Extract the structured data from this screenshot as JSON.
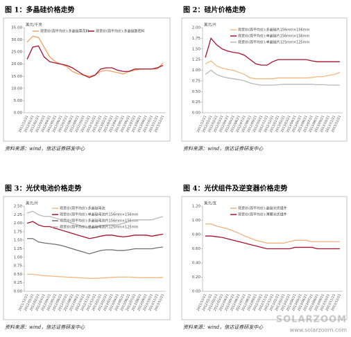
{
  "chart_data": [
    {
      "type": "line",
      "title": "图 1：多晶硅价格走势",
      "unit": "美元/千克",
      "source": "资料来源：wind，信达证券研发中心",
      "categories": [
        "2011/12/21",
        "2012/01/21",
        "2012/02/21",
        "2012/03/21",
        "2012/04/21",
        "2012/05/21",
        "2012/06/21",
        "2012/07/21",
        "2012/08/21",
        "2012/09/21",
        "2012/10/21",
        "2012/11/21",
        "2012/12/21",
        "2013/01/21",
        "2013/02/21",
        "2013/03/21",
        "2013/04/21",
        "2013/05/21",
        "2013/06/21",
        "2013/07/21",
        "2013/08/21",
        "2013/09/21",
        "2013/10/21",
        "2013/11/21",
        "2013/12/21"
      ],
      "series": [
        {
          "name": "现货价(周平均价):多晶硅菜花料",
          "color": "#f0a060",
          "values": [
            29,
            31.5,
            31,
            27,
            23,
            21,
            20,
            19,
            17,
            16,
            15.5,
            15,
            15.5,
            17,
            17.5,
            17,
            16.5,
            16,
            17,
            17.5,
            18,
            18,
            18,
            18,
            20.5
          ]
        },
        {
          "name": "现货价(周平均价):多晶硅致密料",
          "color": "#a8102a",
          "values": [
            22,
            27,
            27.5,
            23,
            21,
            20.5,
            20,
            19.5,
            18.5,
            17,
            15.5,
            14.5,
            15.5,
            18,
            18.5,
            18.5,
            17.5,
            17,
            17,
            18,
            18,
            18,
            18,
            18.5,
            19.5
          ]
        }
      ],
      "ylim": [
        0,
        35
      ],
      "yticks": [
        {
          "value": 0,
          "label": "0.00"
        },
        {
          "value": 5,
          "label": "5.00"
        },
        {
          "value": 10,
          "label": "10.00"
        },
        {
          "value": 15,
          "label": "15.00"
        },
        {
          "value": 20,
          "label": "20.00"
        },
        {
          "value": 25,
          "label": "25.00"
        },
        {
          "value": 30,
          "label": "30.00"
        },
        {
          "value": 35,
          "label": "35.00"
        }
      ],
      "grid": false,
      "legend": "top"
    },
    {
      "type": "line",
      "title": "图 2：硅片价格走势",
      "unit": "美元/片",
      "source": "资料来源：wind，信达证券研发中心",
      "categories": [
        "2011/12/21",
        "2012/01/21",
        "2012/02/21",
        "2012/03/21",
        "2012/04/21",
        "2012/05/21",
        "2012/06/21",
        "2012/07/21",
        "2012/08/21",
        "2012/09/21",
        "2012/10/21",
        "2012/11/21",
        "2012/12/21",
        "2013/01/21",
        "2013/02/21",
        "2013/03/21",
        "2013/04/21",
        "2013/05/21",
        "2013/06/21",
        "2013/07/21",
        "2013/08/21",
        "2013/09/21",
        "2013/10/21",
        "2013/11/21",
        "2013/12/21"
      ],
      "series": [
        {
          "name": "现货价(周平均价):多晶硅片156mm×156mm",
          "color": "#f5b77f",
          "values": [
            1.15,
            1.22,
            1.1,
            1.05,
            1.02,
            1.0,
            0.95,
            0.9,
            0.82,
            0.8,
            0.8,
            0.8,
            0.8,
            0.82,
            0.82,
            0.82,
            0.82,
            0.82,
            0.82,
            0.83,
            0.85,
            0.85,
            0.88,
            0.9,
            0.95
          ]
        },
        {
          "name": "现货价(周平均价):单晶硅片156mm×156mm",
          "color": "#a8102a",
          "values": [
            1.3,
            1.75,
            1.6,
            1.5,
            1.45,
            1.42,
            1.4,
            1.35,
            1.25,
            1.15,
            1.12,
            1.12,
            1.2,
            1.25,
            1.25,
            1.25,
            1.25,
            1.25,
            1.25,
            1.22,
            1.2,
            1.2,
            1.2,
            1.2,
            1.2
          ]
        },
        {
          "name": "现货价(周平均价):单晶硅片125mm×125mm",
          "color": "#b8b8b8",
          "values": [
            0.9,
            1.0,
            0.9,
            0.85,
            0.82,
            0.8,
            0.78,
            0.75,
            0.7,
            0.67,
            0.65,
            0.65,
            0.65,
            0.66,
            0.67,
            0.67,
            0.67,
            0.67,
            0.67,
            0.67,
            0.66,
            0.66,
            0.65,
            0.65,
            0.65
          ]
        }
      ],
      "ylim": [
        0,
        2
      ],
      "yticks": [
        {
          "value": 0,
          "label": "0.00"
        },
        {
          "value": 0.25,
          "label": "0.25"
        },
        {
          "value": 0.5,
          "label": "0.50"
        },
        {
          "value": 0.75,
          "label": "0.75"
        },
        {
          "value": 1,
          "label": "1.00"
        },
        {
          "value": 1.25,
          "label": "1.25"
        },
        {
          "value": 1.5,
          "label": "1.50"
        },
        {
          "value": 1.75,
          "label": "1.75"
        },
        {
          "value": 2,
          "label": "2.00"
        }
      ],
      "grid": false,
      "legend": "right"
    },
    {
      "type": "line",
      "title": "图 3：光伏电池价格走势",
      "unit": "美元/片",
      "source": "资料来源：wind，信达证券研发中心",
      "categories": [
        "2011/12/21",
        "2012/01/21",
        "2012/02/21",
        "2012/03/21",
        "2012/04/21",
        "2012/05/21",
        "2012/06/21",
        "2012/07/21",
        "2012/08/21",
        "2012/09/21",
        "2012/10/21",
        "2012/11/21",
        "2012/12/21",
        "2013/01/21",
        "2013/02/21",
        "2013/03/21",
        "2013/04/21",
        "2013/05/21",
        "2013/06/21",
        "2013/07/21",
        "2013/08/21",
        "2013/09/21",
        "2013/10/21",
        "2013/11/21",
        "2013/12/21"
      ],
      "series": [
        {
          "name": "现货价(周平均价):多晶硅电池",
          "color": "#f5b77f",
          "values": [
            0.5,
            0.5,
            0.48,
            0.46,
            0.45,
            0.44,
            0.43,
            0.42,
            0.41,
            0.4,
            0.39,
            0.38,
            0.38,
            0.39,
            0.4,
            0.41,
            0.42,
            0.42,
            0.42,
            0.41,
            0.4,
            0.4,
            0.4,
            0.4,
            0.41
          ]
        },
        {
          "name": "现货价(周平均价):单晶硅电池片156mm×156mm",
          "color": "#a8102a",
          "values": [
            2.0,
            2.05,
            1.95,
            1.9,
            1.9,
            1.85,
            1.8,
            1.75,
            1.7,
            1.65,
            1.6,
            1.55,
            1.58,
            1.62,
            1.65,
            1.65,
            1.62,
            1.6,
            1.62,
            1.65,
            1.65,
            1.65,
            1.62,
            1.65,
            1.68
          ]
        },
        {
          "name": "现货价(周平均价):多晶硅电池片156mm×156mm",
          "color": "#6e6e6e",
          "values": [
            1.55,
            1.55,
            1.45,
            1.42,
            1.4,
            1.38,
            1.35,
            1.3,
            1.25,
            1.2,
            1.15,
            1.1,
            1.15,
            1.2,
            1.22,
            1.22,
            1.2,
            1.2,
            1.22,
            1.25,
            1.25,
            1.25,
            1.25,
            1.28,
            1.3
          ]
        },
        {
          "name": "现货价(周平均价):单晶硅电池片125mm×125mm",
          "color": "#b8b8b8",
          "values": [
            2.3,
            2.35,
            2.25,
            2.2,
            2.2,
            2.15,
            2.1,
            2.05,
            2.0,
            1.95,
            1.9,
            1.85,
            1.88,
            1.92,
            1.95,
            1.95,
            1.95,
            2.0,
            2.05,
            2.1,
            2.1,
            2.1,
            2.1,
            2.15,
            2.2
          ]
        }
      ],
      "ylim": [
        0,
        2.5
      ],
      "yticks": [
        {
          "value": 0,
          "label": "0.00"
        },
        {
          "value": 0.25,
          "label": "0.25"
        },
        {
          "value": 0.5,
          "label": "0.50"
        },
        {
          "value": 0.75,
          "label": "0.75"
        },
        {
          "value": 1,
          "label": "1.00"
        },
        {
          "value": 1.25,
          "label": "1.25"
        },
        {
          "value": 1.5,
          "label": "1.50"
        },
        {
          "value": 1.75,
          "label": "1.75"
        },
        {
          "value": 2,
          "label": "2.00"
        },
        {
          "value": 2.25,
          "label": "2.25"
        },
        {
          "value": 2.5,
          "label": "2.50"
        }
      ],
      "grid": false,
      "legend": "right"
    },
    {
      "type": "line",
      "title": "图 4：光伏组件及逆变器价格走势",
      "unit": "美元/瓦",
      "source": "资料来源：wind，信达证券研发中心",
      "categories": [
        "2011/12/21",
        "2012/01/21",
        "2012/02/21",
        "2012/03/21",
        "2012/04/21",
        "2012/05/21",
        "2012/06/21",
        "2012/07/21",
        "2012/08/21",
        "2012/09/21",
        "2012/10/21",
        "2012/11/21",
        "2012/12/21",
        "2013/01/21",
        "2013/02/21",
        "2013/03/21",
        "2013/04/21",
        "2013/05/21",
        "2013/06/21",
        "2013/07/21",
        "2013/08/21",
        "2013/09/21",
        "2013/10/21",
        "2013/11/21",
        "2013/12/21"
      ],
      "series": [
        {
          "name": "现货价(周平均价):晶硅光伏组件",
          "color": "#f0b080",
          "values": [
            0.95,
            0.95,
            0.92,
            0.9,
            0.88,
            0.85,
            0.82,
            0.78,
            0.75,
            0.72,
            0.7,
            0.68,
            0.68,
            0.68,
            0.68,
            0.7,
            0.72,
            0.72,
            0.72,
            0.7,
            0.7,
            0.7,
            0.7,
            0.7,
            0.7
          ]
        },
        {
          "name": "现货价(周平均价):薄膜光伏组件",
          "color": "#a8102a",
          "values": [
            0.78,
            0.78,
            0.77,
            0.76,
            0.74,
            0.72,
            0.7,
            0.68,
            0.66,
            0.64,
            0.62,
            0.6,
            0.6,
            0.6,
            0.6,
            0.6,
            0.62,
            0.62,
            0.62,
            0.62,
            0.6,
            0.6,
            0.6,
            0.6,
            0.6
          ]
        }
      ],
      "ylim": [
        0,
        1.2
      ],
      "yticks": [
        {
          "value": 0,
          "label": "0.00"
        },
        {
          "value": 0.2,
          "label": "0.20"
        },
        {
          "value": 0.4,
          "label": "0.40"
        },
        {
          "value": 0.6,
          "label": "0.60"
        },
        {
          "value": 0.8,
          "label": "0.80"
        },
        {
          "value": 1,
          "label": "1.00"
        },
        {
          "value": 1.2,
          "label": "1.20"
        }
      ],
      "grid": false,
      "legend": "right"
    }
  ],
  "watermark": {
    "brand": "SOLARZOOM",
    "url": "www.solarzoom.com"
  }
}
